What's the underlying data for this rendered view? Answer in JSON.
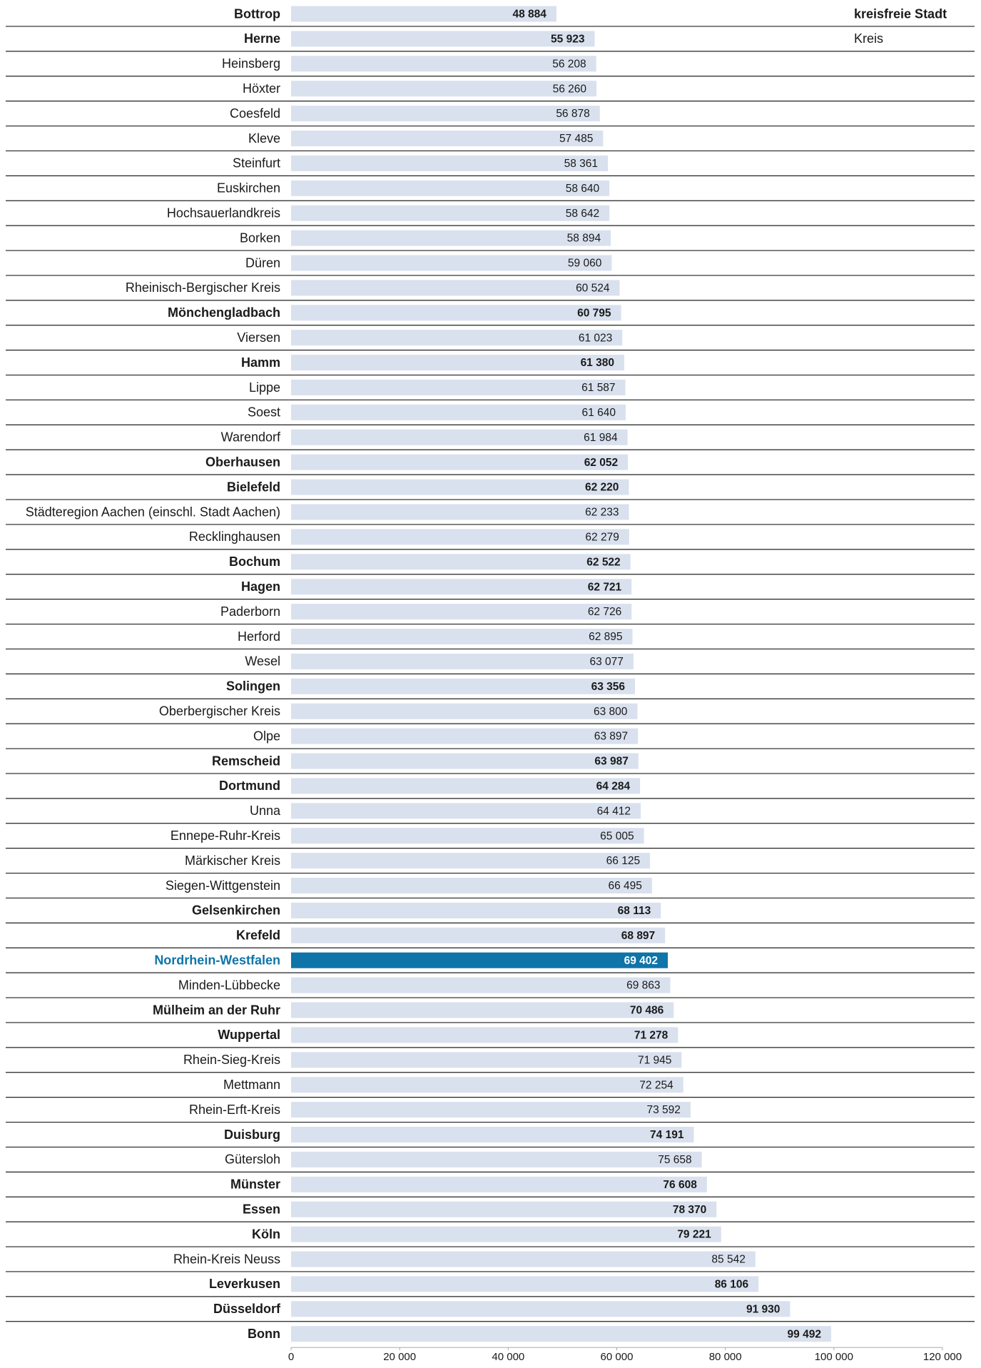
{
  "chart_data": {
    "type": "hbar",
    "categories": [
      "Bottrop",
      "Herne",
      "Heinsberg",
      "Höxter",
      "Coesfeld",
      "Kleve",
      "Steinfurt",
      "Euskirchen",
      "Hochsauerlandkreis",
      "Borken",
      "Düren",
      "Rheinisch-Bergischer Kreis",
      "Mönchengladbach",
      "Viersen",
      "Hamm",
      "Lippe",
      "Soest",
      "Warendorf",
      "Oberhausen",
      "Bielefeld",
      "Städteregion Aachen (einschl. Stadt Aachen)",
      "Recklinghausen",
      "Bochum",
      "Hagen",
      "Paderborn",
      "Herford",
      "Wesel",
      "Solingen",
      "Oberbergischer Kreis",
      "Olpe",
      "Remscheid",
      "Dortmund",
      "Unna",
      "Ennepe-Ruhr-Kreis",
      "Märkischer Kreis",
      "Siegen-Wittgenstein",
      "Gelsenkirchen",
      "Krefeld",
      "Nordrhein-Westfalen",
      "Minden-Lübbecke",
      "Mülheim an der Ruhr",
      "Wuppertal",
      "Rhein-Sieg-Kreis",
      "Mettmann",
      "Rhein-Erft-Kreis",
      "Duisburg",
      "Gütersloh",
      "Münster",
      "Essen",
      "Köln",
      "Rhein-Kreis Neuss",
      "Leverkusen",
      "Düsseldorf",
      "Bonn"
    ],
    "values": [
      48884,
      55923,
      56208,
      56260,
      56878,
      57485,
      58361,
      58640,
      58642,
      58894,
      59060,
      60524,
      60795,
      61023,
      61380,
      61587,
      61640,
      61984,
      62052,
      62220,
      62233,
      62279,
      62522,
      62721,
      62726,
      62895,
      63077,
      63356,
      63800,
      63897,
      63987,
      64284,
      64412,
      65005,
      66125,
      66495,
      68113,
      68897,
      69402,
      69863,
      70486,
      71278,
      71945,
      72254,
      73592,
      74191,
      75658,
      76608,
      78370,
      79221,
      85542,
      86106,
      91930,
      99492
    ],
    "value_labels": [
      "48 884",
      "55 923",
      "56 208",
      "56 260",
      "56 878",
      "57 485",
      "58 361",
      "58 640",
      "58 642",
      "58 894",
      "59 060",
      "60 524",
      "60 795",
      "61 023",
      "61 380",
      "61 587",
      "61 640",
      "61 984",
      "62 052",
      "62 220",
      "62 233",
      "62 279",
      "62 522",
      "62 721",
      "62 726",
      "62 895",
      "63 077",
      "63 356",
      "63 800",
      "63 897",
      "63 987",
      "64 284",
      "64 412",
      "65 005",
      "66 125",
      "66 495",
      "68 113",
      "68 897",
      "69 402",
      "69 863",
      "70 486",
      "71 278",
      "71 945",
      "72 254",
      "73 592",
      "74 191",
      "75 658",
      "76 608",
      "78 370",
      "79 221",
      "85 542",
      "86 106",
      "91 930",
      "99 492"
    ],
    "bold": [
      true,
      true,
      false,
      false,
      false,
      false,
      false,
      false,
      false,
      false,
      false,
      false,
      true,
      false,
      true,
      false,
      false,
      false,
      true,
      true,
      false,
      false,
      true,
      true,
      false,
      false,
      false,
      true,
      false,
      false,
      true,
      true,
      false,
      false,
      false,
      false,
      true,
      true,
      true,
      false,
      true,
      true,
      false,
      false,
      false,
      true,
      false,
      true,
      true,
      true,
      false,
      true,
      true,
      true
    ],
    "color": "#d9e1ee",
    "highlight": "Nordrhein-Westfalen",
    "highlight_color": "#0f74a8",
    "legend": [
      "kreisfreie Stadt",
      "Kreis"
    ],
    "xlim": [
      0,
      120000
    ],
    "xticks": [
      0,
      {
        "value": 20000,
        "label": "20 000"
      },
      {
        "value": 40000,
        "label": "40 000"
      },
      {
        "value": 60000,
        "label": "60 000"
      },
      {
        "value": 80000,
        "label": "80 000"
      },
      {
        "value": 100000,
        "label": "100 000"
      },
      {
        "value": 120000,
        "label": "120 000"
      }
    ]
  }
}
